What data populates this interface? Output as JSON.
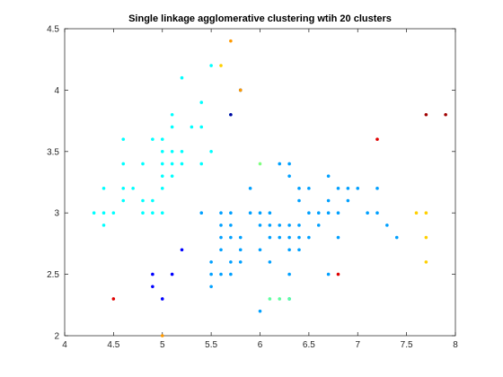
{
  "chart_data": {
    "type": "scatter",
    "title": "Single linkage agglomerative clustering wtih 20 clusters",
    "xlabel": "",
    "ylabel": "",
    "xlim": [
      4,
      8
    ],
    "ylim": [
      2,
      4.5
    ],
    "xticks": [
      "4",
      "4.5",
      "5",
      "5.5",
      "6",
      "6.5",
      "7",
      "7.5",
      "8"
    ],
    "yticks": [
      "2",
      "2.5",
      "3",
      "3.5",
      "4",
      "4.5"
    ],
    "grid": false,
    "legend": "none",
    "colors": {
      "cyan": "#00ffff",
      "blue": "#00a0ff",
      "navy": "#0000a0",
      "darkblue": "#0000ff",
      "red": "#e00000",
      "darkred": "#a00000",
      "orange": "#ff9900",
      "yellow": "#ffd000",
      "green": "#80ff80",
      "mint": "#60ffa0",
      "axis": "#262626"
    },
    "points": [
      {
        "x": 4.3,
        "y": 3.0,
        "c": "cyan"
      },
      {
        "x": 4.4,
        "y": 2.9,
        "c": "cyan"
      },
      {
        "x": 4.4,
        "y": 3.0,
        "c": "cyan"
      },
      {
        "x": 4.4,
        "y": 3.2,
        "c": "cyan"
      },
      {
        "x": 4.5,
        "y": 3.0,
        "c": "cyan"
      },
      {
        "x": 4.6,
        "y": 3.1,
        "c": "cyan"
      },
      {
        "x": 4.6,
        "y": 3.2,
        "c": "cyan"
      },
      {
        "x": 4.6,
        "y": 3.4,
        "c": "cyan"
      },
      {
        "x": 4.6,
        "y": 3.6,
        "c": "cyan"
      },
      {
        "x": 4.7,
        "y": 3.2,
        "c": "cyan"
      },
      {
        "x": 4.8,
        "y": 3.0,
        "c": "cyan"
      },
      {
        "x": 4.8,
        "y": 3.1,
        "c": "cyan"
      },
      {
        "x": 4.8,
        "y": 3.4,
        "c": "cyan"
      },
      {
        "x": 4.9,
        "y": 3.0,
        "c": "cyan"
      },
      {
        "x": 4.9,
        "y": 3.1,
        "c": "cyan"
      },
      {
        "x": 4.9,
        "y": 3.6,
        "c": "cyan"
      },
      {
        "x": 5.0,
        "y": 3.0,
        "c": "cyan"
      },
      {
        "x": 5.0,
        "y": 3.2,
        "c": "cyan"
      },
      {
        "x": 5.0,
        "y": 3.3,
        "c": "cyan"
      },
      {
        "x": 5.0,
        "y": 3.4,
        "c": "cyan"
      },
      {
        "x": 5.0,
        "y": 3.5,
        "c": "cyan"
      },
      {
        "x": 5.0,
        "y": 3.6,
        "c": "cyan"
      },
      {
        "x": 5.1,
        "y": 3.3,
        "c": "cyan"
      },
      {
        "x": 5.1,
        "y": 3.4,
        "c": "cyan"
      },
      {
        "x": 5.1,
        "y": 3.5,
        "c": "cyan"
      },
      {
        "x": 5.1,
        "y": 3.7,
        "c": "cyan"
      },
      {
        "x": 5.1,
        "y": 3.8,
        "c": "cyan"
      },
      {
        "x": 5.2,
        "y": 3.4,
        "c": "cyan"
      },
      {
        "x": 5.2,
        "y": 3.5,
        "c": "cyan"
      },
      {
        "x": 5.2,
        "y": 4.1,
        "c": "cyan"
      },
      {
        "x": 5.3,
        "y": 3.7,
        "c": "cyan"
      },
      {
        "x": 5.4,
        "y": 3.4,
        "c": "cyan"
      },
      {
        "x": 5.4,
        "y": 3.7,
        "c": "cyan"
      },
      {
        "x": 5.4,
        "y": 3.9,
        "c": "cyan"
      },
      {
        "x": 5.5,
        "y": 3.5,
        "c": "cyan"
      },
      {
        "x": 5.5,
        "y": 4.2,
        "c": "cyan"
      },
      {
        "x": 5.7,
        "y": 3.8,
        "c": "cyan"
      },
      {
        "x": 5.8,
        "y": 4.0,
        "c": "cyan"
      },
      {
        "x": 5.7,
        "y": 4.4,
        "c": "orange"
      },
      {
        "x": 5.0,
        "y": 2.3,
        "c": "darkblue"
      },
      {
        "x": 4.9,
        "y": 2.4,
        "c": "darkblue"
      },
      {
        "x": 4.9,
        "y": 2.5,
        "c": "darkblue"
      },
      {
        "x": 5.1,
        "y": 2.5,
        "c": "darkblue"
      },
      {
        "x": 5.2,
        "y": 2.7,
        "c": "darkblue"
      },
      {
        "x": 5.7,
        "y": 3.8,
        "c": "navy"
      },
      {
        "x": 5.8,
        "y": 4.0,
        "c": "navy"
      },
      {
        "x": 5.4,
        "y": 3.0,
        "c": "blue"
      },
      {
        "x": 5.5,
        "y": 2.4,
        "c": "blue"
      },
      {
        "x": 5.5,
        "y": 2.5,
        "c": "blue"
      },
      {
        "x": 5.5,
        "y": 2.6,
        "c": "blue"
      },
      {
        "x": 5.6,
        "y": 2.5,
        "c": "blue"
      },
      {
        "x": 5.6,
        "y": 2.7,
        "c": "blue"
      },
      {
        "x": 5.6,
        "y": 2.8,
        "c": "blue"
      },
      {
        "x": 5.6,
        "y": 2.9,
        "c": "blue"
      },
      {
        "x": 5.6,
        "y": 3.0,
        "c": "blue"
      },
      {
        "x": 5.7,
        "y": 2.5,
        "c": "blue"
      },
      {
        "x": 5.7,
        "y": 2.6,
        "c": "blue"
      },
      {
        "x": 5.7,
        "y": 2.8,
        "c": "blue"
      },
      {
        "x": 5.7,
        "y": 2.9,
        "c": "blue"
      },
      {
        "x": 5.7,
        "y": 3.0,
        "c": "blue"
      },
      {
        "x": 5.8,
        "y": 2.6,
        "c": "blue"
      },
      {
        "x": 5.8,
        "y": 2.7,
        "c": "blue"
      },
      {
        "x": 5.8,
        "y": 2.8,
        "c": "blue"
      },
      {
        "x": 5.9,
        "y": 3.0,
        "c": "blue"
      },
      {
        "x": 5.9,
        "y": 3.2,
        "c": "blue"
      },
      {
        "x": 6.0,
        "y": 2.2,
        "c": "blue"
      },
      {
        "x": 6.0,
        "y": 2.7,
        "c": "blue"
      },
      {
        "x": 6.0,
        "y": 2.9,
        "c": "blue"
      },
      {
        "x": 6.0,
        "y": 3.0,
        "c": "blue"
      },
      {
        "x": 6.1,
        "y": 2.6,
        "c": "blue"
      },
      {
        "x": 6.1,
        "y": 2.8,
        "c": "blue"
      },
      {
        "x": 6.1,
        "y": 2.9,
        "c": "blue"
      },
      {
        "x": 6.1,
        "y": 3.0,
        "c": "blue"
      },
      {
        "x": 6.2,
        "y": 2.8,
        "c": "blue"
      },
      {
        "x": 6.2,
        "y": 2.9,
        "c": "blue"
      },
      {
        "x": 6.2,
        "y": 3.4,
        "c": "blue"
      },
      {
        "x": 6.3,
        "y": 2.3,
        "c": "blue"
      },
      {
        "x": 6.3,
        "y": 2.5,
        "c": "blue"
      },
      {
        "x": 6.3,
        "y": 2.7,
        "c": "blue"
      },
      {
        "x": 6.3,
        "y": 2.8,
        "c": "blue"
      },
      {
        "x": 6.3,
        "y": 2.9,
        "c": "blue"
      },
      {
        "x": 6.3,
        "y": 3.3,
        "c": "blue"
      },
      {
        "x": 6.3,
        "y": 3.4,
        "c": "blue"
      },
      {
        "x": 6.4,
        "y": 2.7,
        "c": "blue"
      },
      {
        "x": 6.4,
        "y": 2.8,
        "c": "blue"
      },
      {
        "x": 6.4,
        "y": 2.9,
        "c": "blue"
      },
      {
        "x": 6.4,
        "y": 3.1,
        "c": "blue"
      },
      {
        "x": 6.4,
        "y": 3.2,
        "c": "blue"
      },
      {
        "x": 6.5,
        "y": 2.8,
        "c": "blue"
      },
      {
        "x": 6.5,
        "y": 3.0,
        "c": "blue"
      },
      {
        "x": 6.5,
        "y": 3.2,
        "c": "blue"
      },
      {
        "x": 6.6,
        "y": 2.9,
        "c": "blue"
      },
      {
        "x": 6.6,
        "y": 3.0,
        "c": "blue"
      },
      {
        "x": 6.7,
        "y": 2.5,
        "c": "blue"
      },
      {
        "x": 6.7,
        "y": 3.0,
        "c": "blue"
      },
      {
        "x": 6.7,
        "y": 3.1,
        "c": "blue"
      },
      {
        "x": 6.7,
        "y": 3.3,
        "c": "blue"
      },
      {
        "x": 6.8,
        "y": 2.8,
        "c": "blue"
      },
      {
        "x": 6.8,
        "y": 3.0,
        "c": "blue"
      },
      {
        "x": 6.8,
        "y": 3.2,
        "c": "blue"
      },
      {
        "x": 6.9,
        "y": 3.1,
        "c": "blue"
      },
      {
        "x": 6.9,
        "y": 3.2,
        "c": "blue"
      },
      {
        "x": 7.0,
        "y": 3.2,
        "c": "blue"
      },
      {
        "x": 7.1,
        "y": 3.0,
        "c": "blue"
      },
      {
        "x": 7.2,
        "y": 3.0,
        "c": "blue"
      },
      {
        "x": 7.2,
        "y": 3.2,
        "c": "blue"
      },
      {
        "x": 7.3,
        "y": 2.9,
        "c": "blue"
      },
      {
        "x": 7.4,
        "y": 2.8,
        "c": "blue"
      },
      {
        "x": 6.0,
        "y": 3.4,
        "c": "green"
      },
      {
        "x": 6.1,
        "y": 2.3,
        "c": "mint"
      },
      {
        "x": 6.2,
        "y": 2.3,
        "c": "mint"
      },
      {
        "x": 6.3,
        "y": 2.3,
        "c": "mint"
      },
      {
        "x": 4.5,
        "y": 2.3,
        "c": "red"
      },
      {
        "x": 6.8,
        "y": 2.5,
        "c": "red"
      },
      {
        "x": 7.2,
        "y": 3.6,
        "c": "red"
      },
      {
        "x": 7.7,
        "y": 3.8,
        "c": "darkred"
      },
      {
        "x": 7.9,
        "y": 3.8,
        "c": "darkred"
      },
      {
        "x": 5.8,
        "y": 4.0,
        "c": "orange"
      },
      {
        "x": 5.0,
        "y": 2.0,
        "c": "orange"
      },
      {
        "x": 5.6,
        "y": 4.2,
        "c": "yellow"
      },
      {
        "x": 7.7,
        "y": 2.6,
        "c": "yellow"
      },
      {
        "x": 7.7,
        "y": 3.0,
        "c": "yellow"
      },
      {
        "x": 7.7,
        "y": 2.8,
        "c": "yellow"
      },
      {
        "x": 7.6,
        "y": 3.0,
        "c": "yellow"
      }
    ]
  }
}
